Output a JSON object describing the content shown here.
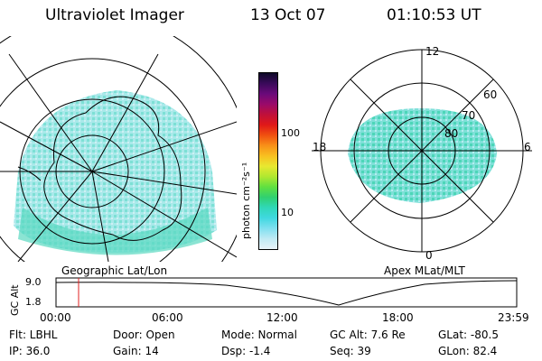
{
  "header": {
    "instrument": "Ultraviolet Imager",
    "date": "13 Oct 07",
    "time": "01:10:53 UT"
  },
  "colorbar": {
    "unit_label": "photon cm⁻²s⁻¹",
    "ticks": [
      "100",
      "10"
    ],
    "colors": [
      "#0e0a28",
      "#3a0a5a",
      "#6a0a7a",
      "#9a0a6a",
      "#c0103a",
      "#e01818",
      "#f05010",
      "#f89018",
      "#f8c020",
      "#e8e830",
      "#b0e830",
      "#60e040",
      "#30d070",
      "#30d8b8",
      "#40d8e0",
      "#80e0f0",
      "#c0eaf4",
      "#e8f2f8"
    ]
  },
  "left_map": {
    "caption": "Geographic Lat/Lon"
  },
  "right_map": {
    "caption": "Apex MLat/MLT",
    "mlt_labels": {
      "top": "12",
      "left": "18",
      "right": "6",
      "bottom": "0"
    },
    "lat_labels": [
      "60",
      "70",
      "80"
    ]
  },
  "altitude_plot": {
    "ylabel": "GC Alt",
    "yticks": [
      "9.0",
      "1.8"
    ],
    "xticks": [
      "00:00",
      "06:00",
      "12:00",
      "18:00",
      "23:59"
    ],
    "current_time_fraction": 0.049,
    "marker_color": "#e02020"
  },
  "status": {
    "filter": "Flt: LBHL",
    "door": "Door: Open",
    "mode": "Mode: Normal",
    "gc_alt": "GC Alt: 7.6 Re",
    "glat": "GLat: -80.5",
    "ip": "IP: 36.0",
    "gain": "Gain: 14",
    "dsp": "Dsp:    -1.4",
    "seq": "Seq: 39",
    "glon": "GLon:  82.4"
  }
}
